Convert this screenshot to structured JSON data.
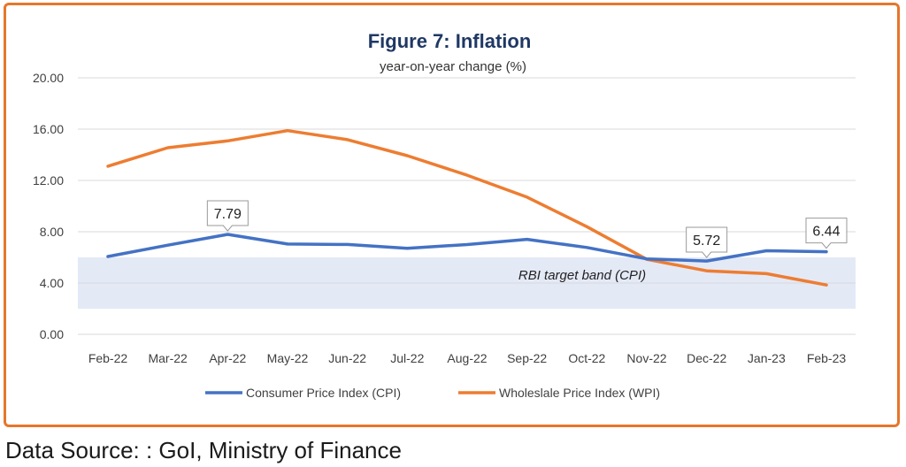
{
  "chart_data": {
    "type": "line",
    "title": "Figure 7: Inflation",
    "subtitle": "year-on-year change (%)",
    "categories": [
      "Feb-22",
      "Mar-22",
      "Apr-22",
      "May-22",
      "Jun-22",
      "Jul-22",
      "Aug-22",
      "Sep-22",
      "Oct-22",
      "Nov-22",
      "Dec-22",
      "Jan-23",
      "Feb-23"
    ],
    "yticks": [
      "0.00",
      "4.00",
      "8.00",
      "12.00",
      "16.00",
      "20.00"
    ],
    "ylim": [
      0,
      20
    ],
    "grid": true,
    "legend_position": "bottom",
    "series": [
      {
        "name": "Consumer Price Index (CPI)",
        "color": "#4472c4",
        "values": [
          6.07,
          6.95,
          7.79,
          7.04,
          7.01,
          6.71,
          7.0,
          7.41,
          6.77,
          5.88,
          5.72,
          6.52,
          6.44
        ]
      },
      {
        "name": "Wholeslale Price Index (WPI)",
        "color": "#ed7d31",
        "values": [
          13.11,
          14.55,
          15.08,
          15.88,
          15.18,
          13.93,
          12.41,
          10.7,
          8.39,
          5.85,
          4.95,
          4.73,
          3.85
        ]
      }
    ],
    "band": {
      "label": "RBI target band (CPI)",
      "from": 2,
      "to": 6,
      "color": "#e4e9f6"
    },
    "annotations": [
      {
        "series": 0,
        "index": 2,
        "text": "7.79"
      },
      {
        "series": 0,
        "index": 10,
        "text": "5.72"
      },
      {
        "series": 0,
        "index": 12,
        "text": "6.44"
      }
    ]
  },
  "footer": {
    "source": "Data Source: : GoI, Ministry of Finance"
  }
}
